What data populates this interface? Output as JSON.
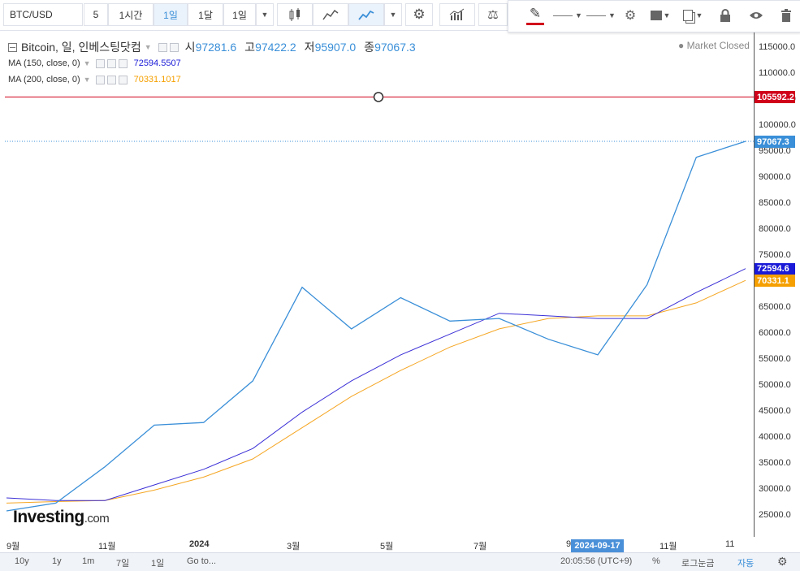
{
  "toolbar": {
    "symbol": "BTC/USD",
    "intervals": [
      "5",
      "1시간",
      "1일",
      "1달",
      "1일"
    ],
    "active_interval": "1일"
  },
  "legend": {
    "name": "Bitcoin, 일, 인베스팅닷컴",
    "open_label": "시",
    "open": "97281.6",
    "high_label": "고",
    "high": "97422.2",
    "low_label": "저",
    "low": "95907.0",
    "close_label": "종",
    "close": "97067.3",
    "ma150_label": "MA (150, close, 0)",
    "ma150_value": "72594.5507",
    "ma200_label": "MA (200, close, 0)",
    "ma200_value": "70331.1017"
  },
  "status": "Market Closed",
  "logo": {
    "main": "Investing",
    "suffix": ".com"
  },
  "price_tags": {
    "hline": "105592.2",
    "last": "97067.3",
    "ma150": "72594.6",
    "ma200": "70331.1"
  },
  "colors": {
    "line": "#3a8fd8",
    "ma150": "#3b2fd6",
    "ma200": "#f5a623",
    "hline": "#d0021b",
    "tag_last": "#3a8fd8",
    "tag_ma150": "#1a1ad8",
    "tag_ma200": "#f5a000"
  },
  "bottom": {
    "ranges": [
      "10y",
      "1y",
      "1m",
      "7일",
      "1일",
      "Go to..."
    ],
    "time": "20:05:56 (UTC+9)",
    "percent": "%",
    "log": "로그눈금",
    "auto": "자동"
  },
  "chart_data": {
    "type": "line",
    "title": "Bitcoin, 일, 인베스팅닷컴",
    "x": [
      "2023-09",
      "2023-10",
      "2023-11",
      "2023-12",
      "2024-01",
      "2024-02",
      "2024-03",
      "2024-04",
      "2024-05",
      "2024-06",
      "2024-07",
      "2024-08",
      "2024-09",
      "2024-10",
      "2024-11",
      "2024-12"
    ],
    "x_tick_labels": [
      "9월",
      "11월",
      "2024",
      "3월",
      "5월",
      "7월",
      "9",
      "2024-09-17",
      "11월",
      "11"
    ],
    "y_tick_labels": [
      "25000.0",
      "30000.0",
      "35000.0",
      "40000.0",
      "45000.0",
      "50000.0",
      "55000.0",
      "60000.0",
      "65000.0",
      "70000.0",
      "75000.0",
      "80000.0",
      "85000.0",
      "90000.0",
      "95000.0",
      "100000.0",
      "105000.0",
      "110000.0",
      "115000.0"
    ],
    "ylim": [
      21000,
      118000
    ],
    "series": [
      {
        "name": "Bitcoin",
        "values": [
          26000,
          27500,
          34500,
          42500,
          43000,
          51000,
          69000,
          61000,
          67000,
          62500,
          63000,
          59000,
          56000,
          69500,
          94000,
          97067
        ]
      },
      {
        "name": "MA (150, close, 0)",
        "values": [
          28500,
          28000,
          28000,
          31000,
          34000,
          38000,
          45000,
          51000,
          56000,
          60000,
          64000,
          63500,
          63000,
          63000,
          68000,
          72594
        ]
      },
      {
        "name": "MA (200, close, 0)",
        "values": [
          27500,
          27800,
          28000,
          30000,
          32500,
          36000,
          42000,
          48000,
          53000,
          57500,
          61000,
          63000,
          63500,
          63500,
          66000,
          70331
        ]
      }
    ],
    "hline": 105592.2,
    "last_value": 97067.3,
    "grid": false
  }
}
